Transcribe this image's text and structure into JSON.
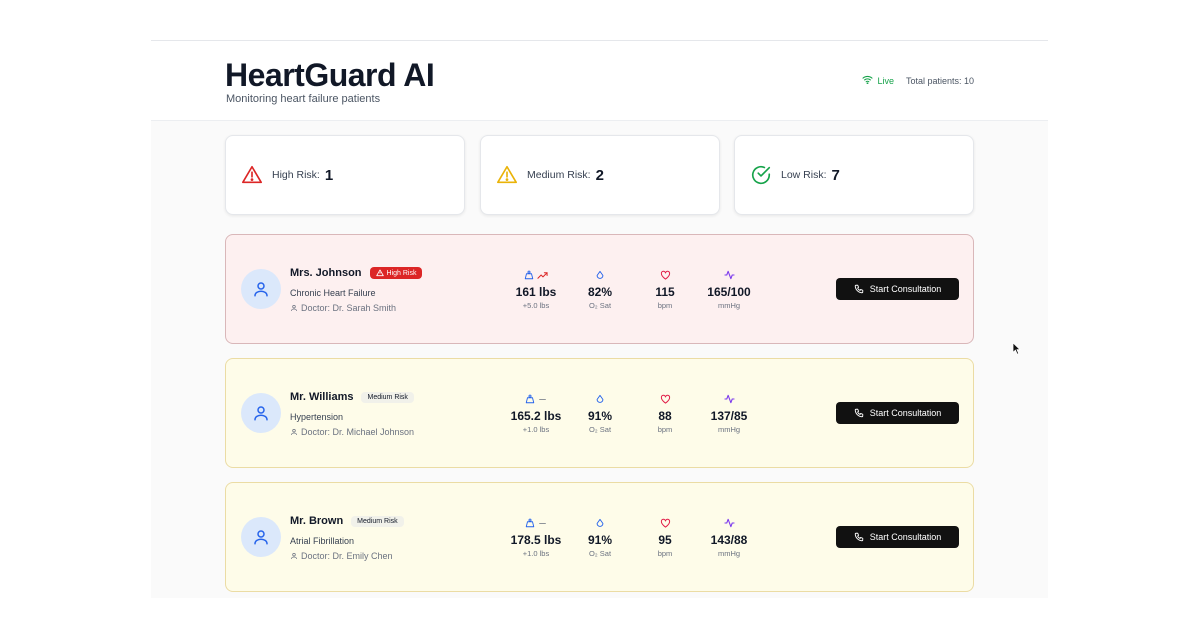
{
  "header": {
    "title": "HeartGuard AI",
    "subtitle": "Monitoring heart failure patients",
    "live_label": "Live",
    "total_patients": "Total patients: 10"
  },
  "summary": [
    {
      "label": "High Risk:",
      "count": "1",
      "icon": "warning-triangle-icon",
      "color": "#dc2626"
    },
    {
      "label": "Medium Risk:",
      "count": "2",
      "icon": "warning-triangle-icon",
      "color": "#eab308"
    },
    {
      "label": "Low Risk:",
      "count": "7",
      "icon": "check-circle-icon",
      "color": "#16a34a"
    }
  ],
  "patients": [
    {
      "name": "Mrs. Johnson",
      "risk": "High Risk",
      "condition": "Chronic Heart Failure",
      "doctor": "Doctor: Dr. Sarah Smith",
      "weight": "161 lbs",
      "weight_change": "+5.0 lbs",
      "weight_trend": "up",
      "o2": "82%",
      "o2_label": "O₂ Sat",
      "hr": "115",
      "hr_label": "bpm",
      "bp": "165/100",
      "bp_label": "mmHg",
      "button": "Start Consultation"
    },
    {
      "name": "Mr. Williams",
      "risk": "Medium Risk",
      "condition": "Hypertension",
      "doctor": "Doctor: Dr. Michael Johnson",
      "weight": "165.2 lbs",
      "weight_change": "+1.0 lbs",
      "weight_trend": "flat",
      "o2": "91%",
      "o2_label": "O₂ Sat",
      "hr": "88",
      "hr_label": "bpm",
      "bp": "137/85",
      "bp_label": "mmHg",
      "button": "Start Consultation"
    },
    {
      "name": "Mr. Brown",
      "risk": "Medium Risk",
      "condition": "Atrial Fibrillation",
      "doctor": "Doctor: Dr. Emily Chen",
      "weight": "178.5 lbs",
      "weight_change": "+1.0 lbs",
      "weight_trend": "flat",
      "o2": "91%",
      "o2_label": "O₂ Sat",
      "hr": "95",
      "hr_label": "bpm",
      "bp": "143/88",
      "bp_label": "mmHg",
      "button": "Start Consultation"
    }
  ],
  "colors": {
    "high": "#dc2626",
    "medium": "#eab308",
    "low": "#16a34a",
    "weight_icon": "#2563eb",
    "o2_icon": "#2563eb",
    "hr_icon": "#e11d48",
    "bp_icon": "#7c3aed"
  }
}
